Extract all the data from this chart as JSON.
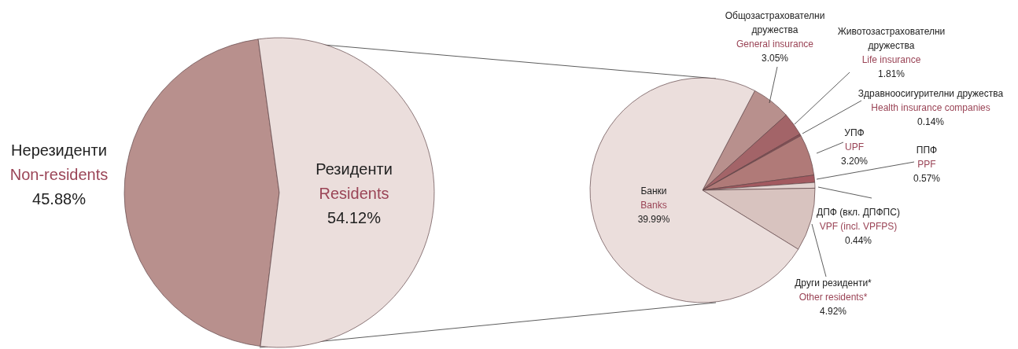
{
  "chart_data": [
    {
      "type": "pie",
      "categories": [
        "Нерезиденти\nNon-residents",
        "Резиденти\nResidents"
      ],
      "values": [
        45.88,
        54.12
      ],
      "colors": [
        "#b8908d",
        "#ebdedc"
      ],
      "value_labels": [
        "45.88%",
        "54.12%"
      ]
    },
    {
      "type": "pie",
      "categories": [
        "Общозастрахователни\nдружества\nGeneral insurance",
        "Животозастрахователни\nдружества\nLife insurance",
        "Здравноосигурителни дружества\nHealth insurance companies",
        "УПФ\nUPF",
        "ППФ\nPPF",
        "ДПФ (вкл. ДПФПС)\nVPF (incl. VPFPS)",
        "Други резиденти*\nOther residents*",
        "Банки\nBanks"
      ],
      "values": [
        3.05,
        1.81,
        0.14,
        3.2,
        0.57,
        0.44,
        4.92,
        39.99
      ],
      "colors": [
        "#b8908d",
        "#a36468",
        "#8a4e55",
        "#b07a78",
        "#a35a60",
        "#e3d3d0",
        "#d8c3bf",
        "#ebdedc"
      ],
      "value_labels": [
        "3.05%",
        "1.81%",
        "0.14%",
        "3.20%",
        "0.57%",
        "0.44%",
        "4.92%",
        "39.99%"
      ]
    }
  ]
}
